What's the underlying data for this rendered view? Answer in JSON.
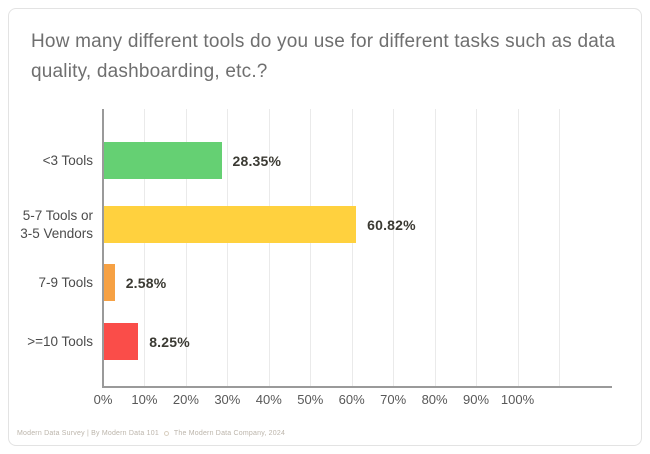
{
  "card": {
    "title": "How many different tools do you use for different tasks such as data quality, dashboarding, etc.?",
    "footer": {
      "survey_credit": "Modern Data Survey | By Modern Data 101",
      "company_credit": "The Modern Data Company, 2024",
      "separator_icon": "ring-icon"
    }
  },
  "chart_data": {
    "type": "bar",
    "orientation": "horizontal",
    "title": "How many different tools do you use for different tasks such as data quality, dashboarding, etc.?",
    "categories": [
      "<3 Tools",
      "5-7 Tools or\n3-5 Vendors",
      "7-9 Tools",
      ">=10 Tools"
    ],
    "values": [
      28.35,
      60.82,
      2.58,
      8.25
    ],
    "value_labels": [
      "28.35%",
      "60.82%",
      "2.58%",
      "8.25%"
    ],
    "bar_colors": [
      "#65d073",
      "#ffd13e",
      "#f6a144",
      "#fa4d49"
    ],
    "x_tick_labels": [
      "0%",
      "10%",
      "20%",
      "30%",
      "40%",
      "50%",
      "60%",
      "70%",
      "80%",
      "90%",
      "100%"
    ],
    "x_tick_values": [
      0,
      10,
      20,
      30,
      40,
      50,
      60,
      70,
      80,
      90,
      100
    ],
    "xlim": [
      0,
      110
    ],
    "xlabel": "",
    "ylabel": "",
    "grid": true,
    "legend": false,
    "colors": {
      "grid": "#eaeaea",
      "axis": "#9a9a9a",
      "category_label": "#4b4b4b",
      "value_label": "#3b3a33",
      "tick_label": "#585858",
      "title": "#6f6f6f"
    }
  }
}
